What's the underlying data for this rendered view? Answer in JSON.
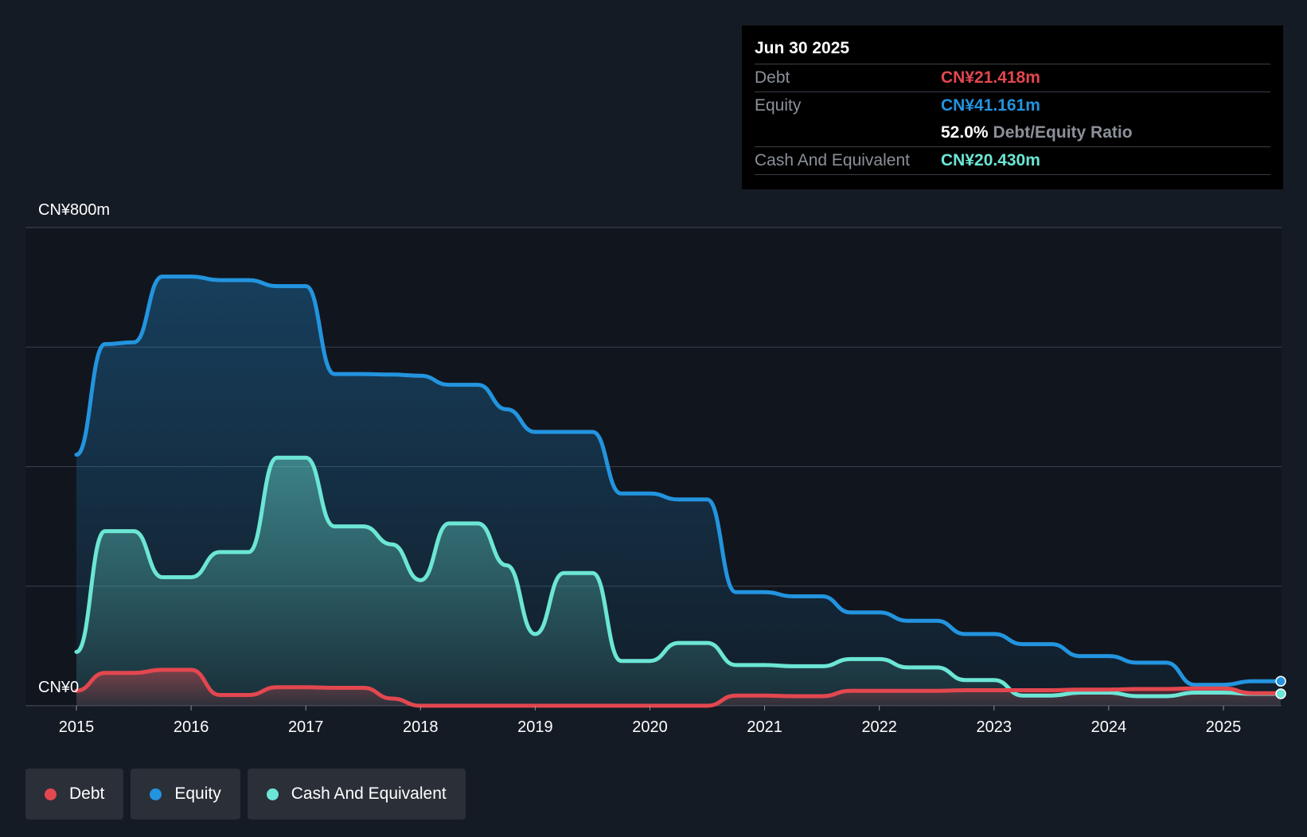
{
  "tooltip": {
    "date": "Jun 30 2025",
    "rows": [
      {
        "label": "Debt",
        "value": "CN¥21.418m"
      },
      {
        "label": "Equity",
        "value": "CN¥41.161m"
      },
      {
        "label": "",
        "value": "52.0%",
        "suffix": "Debt/Equity Ratio"
      },
      {
        "label": "Cash And Equivalent",
        "value": "CN¥20.430m"
      }
    ]
  },
  "legend": [
    {
      "label": "Debt",
      "color": "#e3474f"
    },
    {
      "label": "Equity",
      "color": "#2394df"
    },
    {
      "label": "Cash And Equivalent",
      "color": "#6ce6d5"
    }
  ],
  "colors": {
    "background": "#151b24",
    "debt": "#e3474f",
    "equity": "#2394df",
    "cash": "#6ce6d5",
    "grid": "#3a414c"
  },
  "chart_data": {
    "type": "area",
    "ylim": [
      0,
      800
    ],
    "xlim": [
      2015,
      2025.5
    ],
    "y_tick_labels": [
      "CN¥0",
      "CN¥800m"
    ],
    "x_tick_labels": [
      "2015",
      "2016",
      "2017",
      "2018",
      "2019",
      "2020",
      "2021",
      "2022",
      "2023",
      "2024",
      "2025"
    ],
    "grid": true,
    "legend_position": "bottom-left",
    "series": [
      {
        "name": "Equity",
        "x": [
          2015.0,
          2015.25,
          2015.5,
          2015.75,
          2016.0,
          2016.25,
          2016.5,
          2016.75,
          2017.0,
          2017.25,
          2017.5,
          2017.75,
          2018.0,
          2018.25,
          2018.5,
          2018.75,
          2019.0,
          2019.25,
          2019.5,
          2019.75,
          2020.0,
          2020.25,
          2020.5,
          2020.75,
          2021.0,
          2021.25,
          2021.5,
          2021.75,
          2022.0,
          2022.25,
          2022.5,
          2022.75,
          2023.0,
          2023.25,
          2023.5,
          2023.75,
          2024.0,
          2024.25,
          2024.5,
          2024.75,
          2025.0,
          2025.25,
          2025.5
        ],
        "values": [
          420,
          605,
          608,
          718,
          718,
          712,
          712,
          702,
          702,
          555,
          555,
          554,
          552,
          537,
          537,
          496,
          458,
          458,
          458,
          355,
          355,
          345,
          345,
          190,
          190,
          183,
          183,
          156,
          156,
          142,
          142,
          120,
          120,
          103,
          103,
          83,
          83,
          72,
          72,
          35,
          35,
          41,
          41
        ]
      },
      {
        "name": "Cash And Equivalent",
        "x": [
          2015.0,
          2015.25,
          2015.5,
          2015.75,
          2016.0,
          2016.25,
          2016.5,
          2016.75,
          2017.0,
          2017.25,
          2017.5,
          2017.75,
          2018.0,
          2018.25,
          2018.5,
          2018.75,
          2019.0,
          2019.25,
          2019.5,
          2019.75,
          2020.0,
          2020.25,
          2020.5,
          2020.75,
          2021.0,
          2021.25,
          2021.5,
          2021.75,
          2022.0,
          2022.25,
          2022.5,
          2022.75,
          2023.0,
          2023.25,
          2023.5,
          2023.75,
          2024.0,
          2024.25,
          2024.5,
          2024.75,
          2025.0,
          2025.25,
          2025.5
        ],
        "values": [
          90,
          292,
          292,
          215,
          215,
          257,
          257,
          415,
          415,
          300,
          300,
          270,
          210,
          305,
          305,
          235,
          120,
          222,
          222,
          75,
          75,
          105,
          105,
          68,
          68,
          66,
          66,
          78,
          78,
          64,
          64,
          43,
          43,
          17,
          17,
          22,
          22,
          16,
          16,
          22,
          22,
          20,
          20
        ]
      },
      {
        "name": "Debt",
        "x": [
          2015.0,
          2015.25,
          2015.5,
          2015.75,
          2016.0,
          2016.25,
          2016.5,
          2016.75,
          2017.0,
          2017.25,
          2017.5,
          2017.75,
          2018.0,
          2018.25,
          2018.5,
          2018.75,
          2019.0,
          2019.25,
          2019.5,
          2019.75,
          2020.0,
          2020.25,
          2020.5,
          2020.75,
          2021.0,
          2021.25,
          2021.5,
          2021.75,
          2022.0,
          2022.25,
          2022.5,
          2022.75,
          2023.0,
          2023.25,
          2023.5,
          2023.75,
          2024.0,
          2024.25,
          2024.5,
          2024.75,
          2025.0,
          2025.25,
          2025.5
        ],
        "values": [
          25,
          55,
          55,
          60,
          60,
          18,
          18,
          31,
          31,
          30,
          30,
          12,
          0,
          0,
          0,
          0,
          0,
          0,
          0,
          0,
          0,
          0,
          0,
          17,
          17,
          16,
          16,
          25,
          25,
          25,
          25,
          26,
          26,
          26,
          26,
          27,
          27,
          28,
          28,
          29,
          29,
          21,
          21
        ]
      }
    ]
  }
}
